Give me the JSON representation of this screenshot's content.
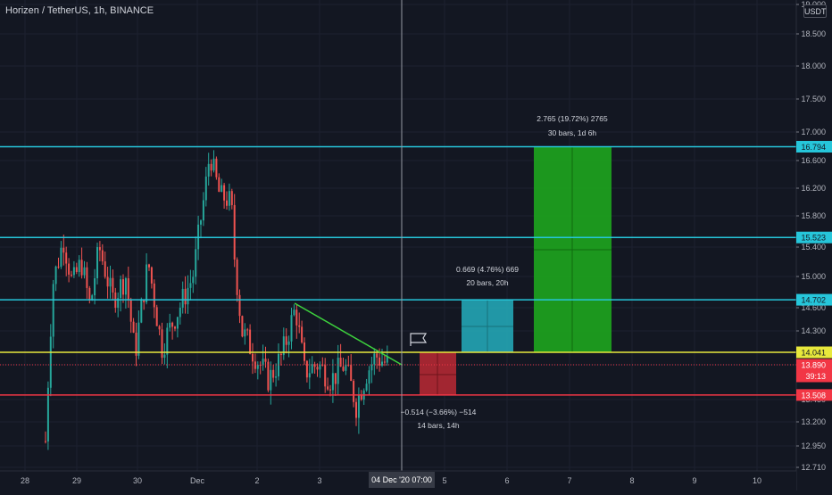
{
  "header": {
    "symbol_title": "Horizen / TetherUS, 1h, BINANCE",
    "currency": "USDT"
  },
  "chart_data": {
    "type": "candlestick",
    "title": "Horizen / TetherUS, 1h, BINANCE",
    "y_axis": {
      "range": [
        12.63,
        19.05
      ],
      "tick_labels": [
        "19.000",
        "18.500",
        "18.000",
        "17.500",
        "17.000",
        "16.600",
        "16.200",
        "15.800",
        "15.400",
        "15.000",
        "14.600",
        "14.300",
        "13.890",
        "13.450",
        "13.200",
        "12.950",
        "12.710"
      ]
    },
    "x_axis": {
      "tick_labels": [
        "28",
        "29",
        "30",
        "Dec",
        "2",
        "3",
        "5",
        "6",
        "7",
        "8",
        "9",
        "10"
      ],
      "crosshair_label": "04 Dec '20  07:00"
    },
    "levels": [
      {
        "label": "16.794",
        "color": "#26c6da"
      },
      {
        "label": "15.523",
        "color": "#26c6da"
      },
      {
        "label": "14.702",
        "color": "#26c6da"
      },
      {
        "label": "14.041",
        "color": "#e8e83c"
      },
      {
        "label": "13.508",
        "color": "#f23645"
      }
    ],
    "last_price": {
      "label": "13.890",
      "countdown": "39:13",
      "color": "#f23645"
    },
    "measurements": [
      {
        "line1": "2.765 (19.72%) 2765",
        "line2": "30 bars, 1d 6h",
        "color": "#1ea51e"
      },
      {
        "line1": "0.669 (4.76%) 669",
        "line2": "20 bars, 20h",
        "color": "#23a5b5"
      },
      {
        "line1": "−0.514 (−3.66%) −514",
        "line2": "14 bars, 14h",
        "color": "#b22833"
      }
    ],
    "trendline_color": "#3dd13d",
    "candle_colors": {
      "up": "#26a69a",
      "down": "#ef5350"
    }
  }
}
